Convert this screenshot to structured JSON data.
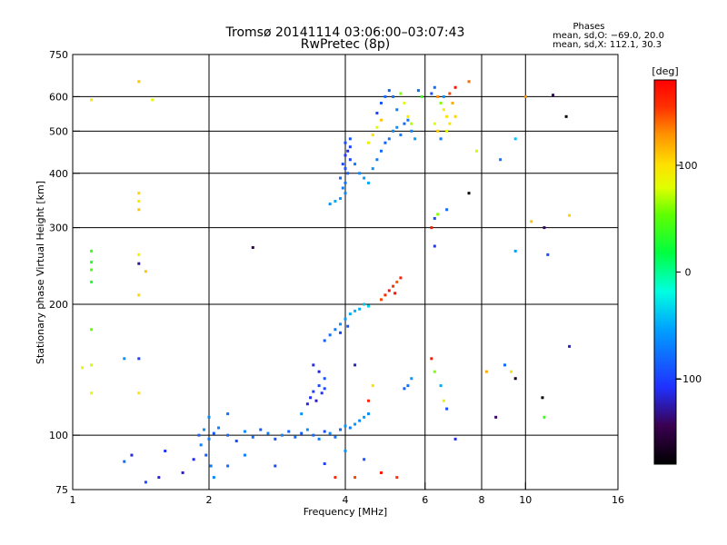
{
  "header": {
    "title_line1": "Tromsø 20141114 03:06:00–03:07:43",
    "title_line2": "RwPretec (8p)"
  },
  "phases": {
    "heading": "Phases",
    "line_o": "mean, sd,O: −69.0, 20.0",
    "line_x": "mean, sd,X: 112.1, 30.3"
  },
  "colorbar": {
    "label": "[deg]",
    "range": [
      -180,
      180
    ],
    "ticks": [
      {
        "value": 100,
        "label": "100"
      },
      {
        "value": 0,
        "label": "0"
      },
      {
        "value": -100,
        "label": "−100"
      }
    ]
  },
  "chart_data": {
    "type": "scatter",
    "title": "Tromsø 20141114 03:06:00–03:07:43",
    "subtitle": "RwPretec (8p)",
    "xlabel": "Frequency [MHz]",
    "ylabel": "Stationary phase Virtual Height [km]",
    "x_scale": "log2",
    "y_scale": "log",
    "xlim": [
      1,
      16
    ],
    "ylim": [
      75,
      750
    ],
    "x_ticks": [
      {
        "value": 1,
        "label": "1"
      },
      {
        "value": 2,
        "label": "2"
      },
      {
        "value": 4,
        "label": "4"
      },
      {
        "value": 6,
        "label": "6"
      },
      {
        "value": 8,
        "label": "8"
      },
      {
        "value": 10,
        "label": "10"
      },
      {
        "value": 16,
        "label": "16"
      }
    ],
    "x_gridlines": [
      2,
      4,
      6,
      8,
      10
    ],
    "y_ticks": [
      {
        "value": 75,
        "label": "75"
      },
      {
        "value": 100,
        "label": "100"
      },
      {
        "value": 200,
        "label": "200"
      },
      {
        "value": 300,
        "label": "300"
      },
      {
        "value": 400,
        "label": "400"
      },
      {
        "value": 500,
        "label": "500"
      },
      {
        "value": 600,
        "label": "600"
      },
      {
        "value": 750,
        "label": "750"
      }
    ],
    "y_gridlines": [
      100,
      200,
      300,
      400,
      500,
      600
    ],
    "color_variable": "phase [deg]",
    "point_columns": [
      "frequency_MHz",
      "virtual_height_km",
      "phase_deg"
    ],
    "points": [
      [
        1.9,
        100,
        -85
      ],
      [
        1.95,
        103,
        -60
      ],
      [
        2.0,
        98,
        -75
      ],
      [
        2.05,
        101,
        -90
      ],
      [
        2.1,
        104,
        -70
      ],
      [
        2.2,
        100,
        -80
      ],
      [
        2.3,
        97,
        -95
      ],
      [
        2.4,
        102,
        -65
      ],
      [
        2.5,
        99,
        -78
      ],
      [
        2.6,
        103,
        -88
      ],
      [
        2.7,
        101,
        -72
      ],
      [
        2.8,
        98,
        -92
      ],
      [
        2.9,
        100,
        -68
      ],
      [
        3.0,
        102,
        -84
      ],
      [
        3.1,
        99,
        -76
      ],
      [
        3.2,
        101,
        -90
      ],
      [
        3.3,
        103,
        -62
      ],
      [
        3.4,
        100,
        -80
      ],
      [
        3.5,
        98,
        -70
      ],
      [
        3.6,
        102,
        -95
      ],
      [
        3.7,
        101,
        -66
      ],
      [
        3.8,
        99,
        -74
      ],
      [
        3.9,
        103,
        -82
      ],
      [
        4.0,
        105,
        -60
      ],
      [
        4.1,
        104,
        -72
      ],
      [
        4.2,
        106,
        -58
      ],
      [
        4.3,
        108,
        -64
      ],
      [
        4.4,
        110,
        -55
      ],
      [
        4.5,
        112,
        -62
      ],
      [
        1.92,
        95,
        -70
      ],
      [
        1.97,
        90,
        -85
      ],
      [
        2.02,
        85,
        -72
      ],
      [
        2.05,
        80,
        -66
      ],
      [
        1.85,
        88,
        -110
      ],
      [
        1.75,
        82,
        -120
      ],
      [
        1.6,
        92,
        -105
      ],
      [
        1.45,
        78,
        -95
      ],
      [
        1.3,
        87,
        -80
      ],
      [
        1.55,
        80,
        -115
      ],
      [
        3.3,
        118,
        -115
      ],
      [
        3.35,
        122,
        -110
      ],
      [
        3.4,
        126,
        -100
      ],
      [
        3.45,
        120,
        -120
      ],
      [
        3.5,
        130,
        -95
      ],
      [
        3.55,
        125,
        -105
      ],
      [
        3.6,
        135,
        -90
      ],
      [
        3.5,
        140,
        -118
      ],
      [
        3.4,
        145,
        -112
      ],
      [
        3.6,
        128,
        -98
      ],
      [
        3.6,
        165,
        -85
      ],
      [
        3.7,
        170,
        -78
      ],
      [
        3.8,
        175,
        -70
      ],
      [
        3.9,
        180,
        -62
      ],
      [
        4.0,
        185,
        -55
      ],
      [
        4.1,
        190,
        -50
      ],
      [
        4.2,
        193,
        -45
      ],
      [
        4.3,
        195,
        -48
      ],
      [
        4.4,
        200,
        -40
      ],
      [
        4.5,
        198,
        -35
      ],
      [
        3.9,
        172,
        -100
      ],
      [
        4.05,
        178,
        -90
      ],
      [
        4.8,
        205,
        150
      ],
      [
        4.9,
        210,
        160
      ],
      [
        5.0,
        215,
        170
      ],
      [
        5.1,
        220,
        155
      ],
      [
        5.2,
        225,
        145
      ],
      [
        5.3,
        230,
        165
      ],
      [
        5.15,
        212,
        175
      ],
      [
        3.7,
        340,
        -60
      ],
      [
        3.8,
        345,
        -50
      ],
      [
        3.9,
        350,
        -55
      ],
      [
        4.0,
        360,
        -65
      ],
      [
        3.95,
        370,
        -70
      ],
      [
        4.0,
        380,
        -75
      ],
      [
        3.9,
        390,
        -80
      ],
      [
        4.05,
        400,
        -85
      ],
      [
        4.0,
        410,
        -90
      ],
      [
        3.95,
        420,
        -95
      ],
      [
        4.1,
        430,
        -100
      ],
      [
        4.0,
        440,
        -105
      ],
      [
        4.05,
        450,
        -110
      ],
      [
        4.1,
        460,
        -100
      ],
      [
        4.0,
        470,
        -95
      ],
      [
        4.1,
        480,
        -90
      ],
      [
        4.2,
        420,
        -70
      ],
      [
        4.3,
        400,
        -65
      ],
      [
        4.4,
        390,
        -55
      ],
      [
        4.5,
        380,
        -50
      ],
      [
        4.6,
        410,
        -60
      ],
      [
        4.7,
        430,
        -70
      ],
      [
        4.8,
        450,
        -80
      ],
      [
        4.9,
        470,
        -85
      ],
      [
        5.0,
        480,
        -75
      ],
      [
        5.1,
        500,
        -65
      ],
      [
        5.2,
        510,
        -60
      ],
      [
        5.3,
        490,
        -70
      ],
      [
        5.4,
        520,
        -80
      ],
      [
        5.5,
        530,
        -75
      ],
      [
        5.6,
        500,
        -65
      ],
      [
        5.7,
        480,
        -55
      ],
      [
        4.7,
        550,
        -100
      ],
      [
        4.8,
        580,
        -90
      ],
      [
        4.9,
        600,
        -80
      ],
      [
        5.0,
        620,
        -85
      ],
      [
        5.1,
        600,
        -75
      ],
      [
        5.2,
        560,
        -70
      ],
      [
        5.3,
        610,
        60
      ],
      [
        5.4,
        580,
        80
      ],
      [
        5.5,
        540,
        90
      ],
      [
        5.6,
        520,
        70
      ],
      [
        5.8,
        620,
        -80
      ],
      [
        5.9,
        600,
        40
      ],
      [
        4.5,
        470,
        90
      ],
      [
        4.6,
        490,
        100
      ],
      [
        4.7,
        510,
        80
      ],
      [
        4.8,
        530,
        110
      ],
      [
        6.2,
        610,
        -90
      ],
      [
        6.3,
        630,
        -80
      ],
      [
        6.4,
        600,
        130
      ],
      [
        6.5,
        580,
        60
      ],
      [
        6.6,
        560,
        90
      ],
      [
        6.7,
        540,
        100
      ],
      [
        6.3,
        520,
        80
      ],
      [
        6.4,
        500,
        110
      ],
      [
        6.5,
        480,
        -70
      ],
      [
        6.6,
        600,
        -60
      ],
      [
        6.8,
        610,
        150
      ],
      [
        7.0,
        630,
        170
      ],
      [
        6.9,
        580,
        120
      ],
      [
        6.8,
        520,
        95
      ],
      [
        7.0,
        540,
        105
      ],
      [
        6.7,
        500,
        85
      ],
      [
        7.5,
        650,
        140
      ],
      [
        7.8,
        450,
        75
      ],
      [
        1.1,
        590,
        95
      ],
      [
        1.4,
        650,
        110
      ],
      [
        1.5,
        590,
        80
      ],
      [
        1.4,
        360,
        105
      ],
      [
        1.4,
        345,
        95
      ],
      [
        1.4,
        330,
        110
      ],
      [
        1.1,
        265,
        40
      ],
      [
        1.1,
        250,
        35
      ],
      [
        1.1,
        240,
        45
      ],
      [
        1.1,
        225,
        30
      ],
      [
        1.4,
        260,
        90
      ],
      [
        1.4,
        248,
        -130
      ],
      [
        1.45,
        238,
        110
      ],
      [
        1.4,
        210,
        105
      ],
      [
        1.1,
        175,
        55
      ],
      [
        1.1,
        145,
        75
      ],
      [
        1.1,
        125,
        85
      ],
      [
        1.4,
        125,
        100
      ],
      [
        1.3,
        150,
        -60
      ],
      [
        1.4,
        150,
        -100
      ],
      [
        2.5,
        270,
        -145
      ],
      [
        6.2,
        300,
        170
      ],
      [
        6.3,
        315,
        -95
      ],
      [
        6.4,
        322,
        60
      ],
      [
        6.7,
        330,
        -80
      ],
      [
        7.5,
        360,
        -175
      ],
      [
        6.3,
        272,
        -105
      ],
      [
        8.8,
        430,
        -75
      ],
      [
        9.5,
        480,
        -40
      ],
      [
        10.3,
        310,
        110
      ],
      [
        11.0,
        300,
        -140
      ],
      [
        11.2,
        260,
        -95
      ],
      [
        9.5,
        265,
        -55
      ],
      [
        10.0,
        600,
        130
      ],
      [
        11.5,
        605,
        -140
      ],
      [
        12.3,
        540,
        -175
      ],
      [
        12.5,
        320,
        105
      ],
      [
        12.5,
        160,
        -120
      ],
      [
        8.2,
        140,
        120
      ],
      [
        9.0,
        145,
        -80
      ],
      [
        9.3,
        140,
        100
      ],
      [
        9.5,
        135,
        -170
      ],
      [
        10.9,
        122,
        -175
      ],
      [
        11.0,
        110,
        40
      ],
      [
        8.6,
        110,
        -140
      ],
      [
        7.0,
        98,
        -110
      ],
      [
        6.2,
        150,
        170
      ],
      [
        6.3,
        140,
        60
      ],
      [
        6.5,
        130,
        -50
      ],
      [
        6.6,
        120,
        90
      ],
      [
        6.7,
        115,
        -95
      ],
      [
        5.5,
        130,
        -75
      ],
      [
        5.6,
        135,
        -60
      ],
      [
        5.4,
        128,
        -85
      ],
      [
        3.8,
        80,
        160
      ],
      [
        4.2,
        80,
        150
      ],
      [
        4.8,
        82,
        170
      ],
      [
        3.6,
        86,
        -100
      ],
      [
        4.0,
        92,
        -60
      ],
      [
        4.4,
        88,
        -90
      ],
      [
        5.2,
        80,
        155
      ],
      [
        4.6,
        130,
        100
      ],
      [
        4.2,
        145,
        -120
      ],
      [
        4.5,
        120,
        160
      ],
      [
        3.2,
        112,
        -60
      ],
      [
        2.8,
        85,
        -95
      ],
      [
        2.2,
        85,
        -80
      ],
      [
        2.4,
        90,
        -70
      ],
      [
        2.0,
        110,
        -65
      ],
      [
        2.2,
        112,
        -75
      ],
      [
        1.35,
        90,
        -115
      ],
      [
        1.05,
        143,
        85
      ]
    ]
  }
}
